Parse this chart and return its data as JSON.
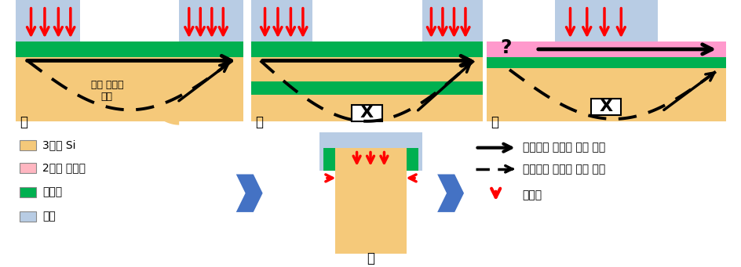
{
  "bg_color": "#ffffff",
  "si_color": "#f5c97a",
  "electrode_color": "#b8cce4",
  "insulator_color": "#00b050",
  "crystal2d_color": "#ff99cc",
  "blue_arrow_color": "#4472c4",
  "legend_colors": {
    "si": "#f5c97a",
    "crystal": "#ffb6c1",
    "insulator": "#00b050",
    "electrode": "#b8cce4"
  },
  "legend_labels": [
    "3차원 Si",
    "2차원 결정질",
    "절연체",
    "전극"
  ],
  "parasite_text": "기생 전하의\n흐름",
  "solid_arrow_label": "바람직한 전하의 이동 경로",
  "dashed_arrow_label": "불필요한 전하의 이동 경로",
  "efield_label": "전기장"
}
